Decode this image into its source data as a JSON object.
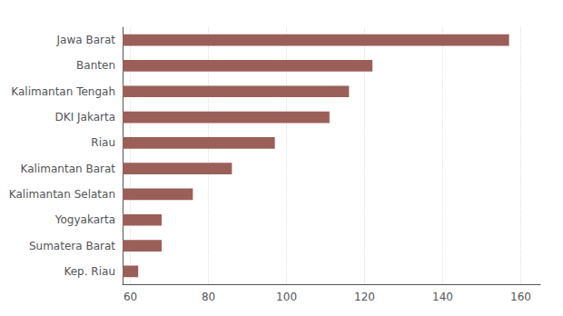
{
  "chart_data": {
    "type": "bar",
    "orientation": "horizontal",
    "categories": [
      "Kep. Riau",
      "Sumatera Barat",
      "Yogyakarta",
      "Kalimantan Selatan",
      "Kalimantan Barat",
      "Riau",
      "DKI Jakarta",
      "Kalimantan Tengah",
      "Banten",
      "Jawa Barat"
    ],
    "values": [
      62,
      68,
      68,
      76,
      86,
      97,
      111,
      116,
      122,
      157
    ],
    "color": "#9b5f5a",
    "xlim": [
      58,
      165
    ],
    "xticks": [
      60,
      80,
      100,
      120,
      140,
      160
    ],
    "grid": true
  }
}
